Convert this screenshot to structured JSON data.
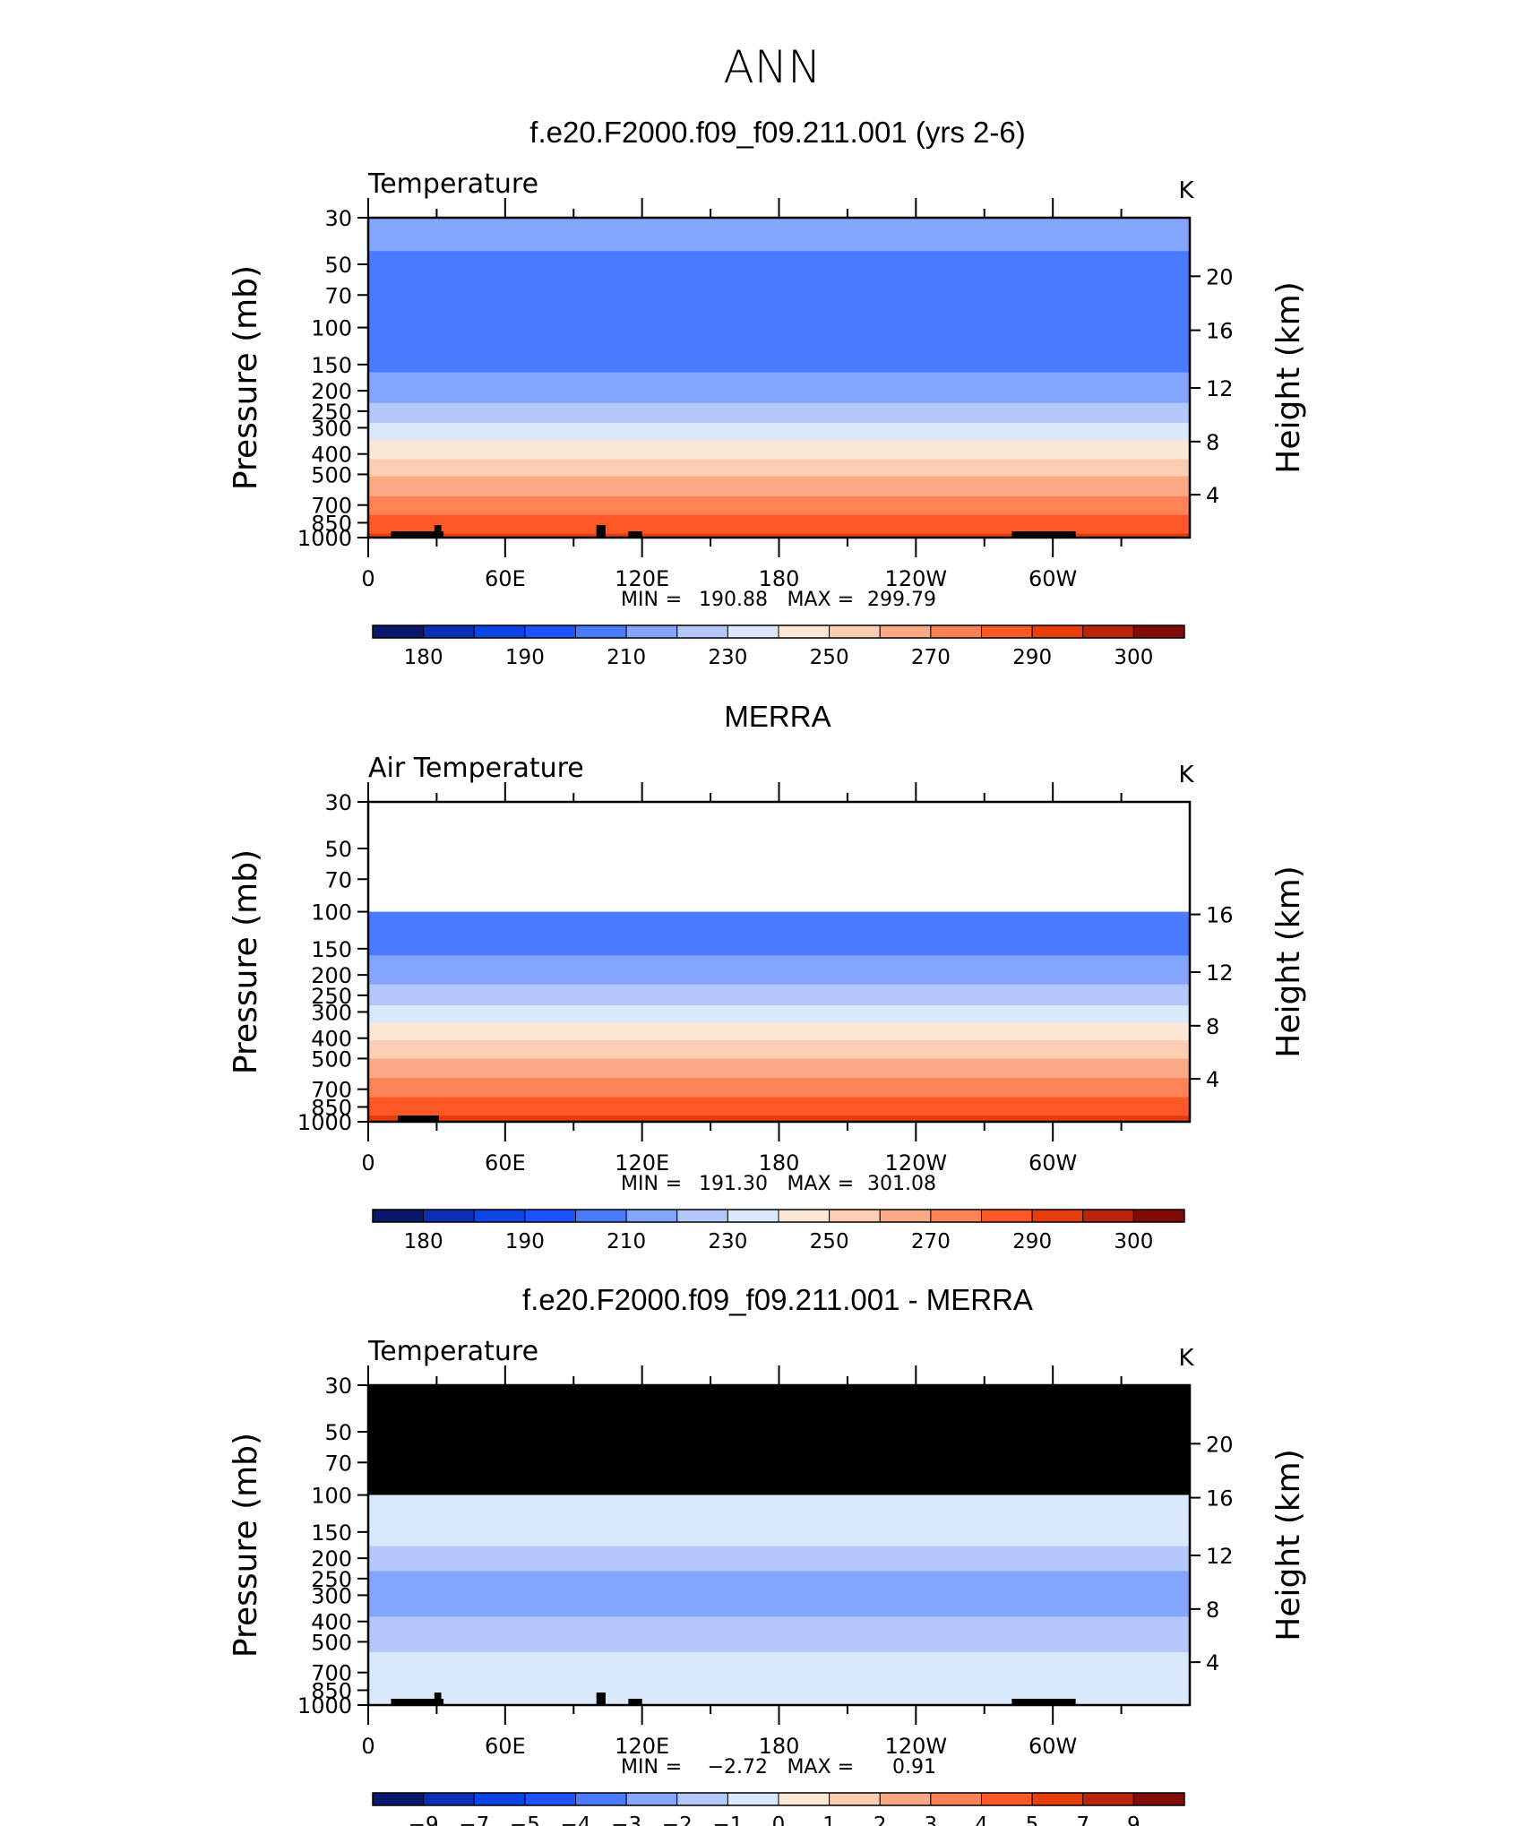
{
  "figure": {
    "main_title": "ANN"
  },
  "chart_data": [
    {
      "type": "heatmap",
      "title": "f.e20.F2000.f09_f09.211.001 (yrs 2-6)",
      "variable": "Temperature",
      "units": "K",
      "xlabel": "",
      "ylabel": "Pressure (mb)",
      "ylabel_right": "Height (km)",
      "x_ticks": [
        "0",
        "60E",
        "120E",
        "180",
        "120W",
        "60W"
      ],
      "y_ticks": [
        "30",
        "50",
        "70",
        "100",
        "150",
        "200",
        "250",
        "300",
        "400",
        "500",
        "700",
        "850",
        "1000"
      ],
      "y_ticks_right": [
        "20",
        "16",
        "12",
        "8",
        "4"
      ],
      "xlim": [
        0,
        360
      ],
      "ylim": [
        1000,
        30
      ],
      "stats": {
        "min_label": "MIN",
        "min": "190.88",
        "max_label": "MAX",
        "max": "299.79"
      },
      "colorbar": {
        "labels": [
          "180",
          "190",
          "210",
          "230",
          "250",
          "270",
          "290",
          "300"
        ],
        "colors": [
          "#08196b",
          "#0a2fb4",
          "#0d44e6",
          "#1c52ff",
          "#4a7aff",
          "#83a5fb",
          "#b3c8f9",
          "#d9e8fb",
          "#fbe7d6",
          "#fbcdb3",
          "#fba885",
          "#fd8256",
          "#fd5825",
          "#e73c0b",
          "#b8250a",
          "#7f0c08"
        ]
      },
      "missing_above_mb": null,
      "data_top_mb": 30,
      "profile": [
        {
          "p": 30,
          "t": 215
        },
        {
          "p": 40,
          "t": 211
        },
        {
          "p": 50,
          "t": 208
        },
        {
          "p": 70,
          "t": 203
        },
        {
          "p": 100,
          "t": 201
        },
        {
          "p": 125,
          "t": 203
        },
        {
          "p": 150,
          "t": 208
        },
        {
          "p": 200,
          "t": 215
        },
        {
          "p": 250,
          "t": 224
        },
        {
          "p": 300,
          "t": 233
        },
        {
          "p": 400,
          "t": 248
        },
        {
          "p": 500,
          "t": 259
        },
        {
          "p": 700,
          "t": 275
        },
        {
          "p": 850,
          "t": 284
        },
        {
          "p": 1000,
          "t": 293
        }
      ],
      "topography_blocks": [
        [
          10,
          33
        ],
        [
          29,
          32
        ],
        [
          100,
          104
        ],
        [
          114,
          120
        ],
        [
          282,
          310
        ]
      ]
    },
    {
      "type": "heatmap",
      "title": "MERRA",
      "variable": "Air Temperature",
      "units": "K",
      "xlabel": "",
      "ylabel": "Pressure (mb)",
      "ylabel_right": "Height (km)",
      "x_ticks": [
        "0",
        "60E",
        "120E",
        "180",
        "120W",
        "60W"
      ],
      "y_ticks": [
        "30",
        "50",
        "70",
        "100",
        "150",
        "200",
        "250",
        "300",
        "400",
        "500",
        "700",
        "850",
        "1000"
      ],
      "y_ticks_right": [
        "16",
        "12",
        "8",
        "4"
      ],
      "xlim": [
        0,
        360
      ],
      "ylim": [
        1000,
        30
      ],
      "stats": {
        "min_label": "MIN",
        "min": "191.30",
        "max_label": "MAX",
        "max": "301.08"
      },
      "colorbar": {
        "labels": [
          "180",
          "190",
          "210",
          "230",
          "250",
          "270",
          "290",
          "300"
        ],
        "colors": [
          "#08196b",
          "#0a2fb4",
          "#0d44e6",
          "#1c52ff",
          "#4a7aff",
          "#83a5fb",
          "#b3c8f9",
          "#d9e8fb",
          "#fbe7d6",
          "#fbcdb3",
          "#fba885",
          "#fd8256",
          "#fd5825",
          "#e73c0b",
          "#b8250a",
          "#7f0c08"
        ]
      },
      "missing_above_mb": 100,
      "data_top_mb": 100,
      "profile": [
        {
          "p": 100,
          "t": 202
        },
        {
          "p": 125,
          "t": 204
        },
        {
          "p": 150,
          "t": 208
        },
        {
          "p": 200,
          "t": 216
        },
        {
          "p": 250,
          "t": 225
        },
        {
          "p": 300,
          "t": 234
        },
        {
          "p": 400,
          "t": 249
        },
        {
          "p": 500,
          "t": 260
        },
        {
          "p": 700,
          "t": 276
        },
        {
          "p": 850,
          "t": 285
        },
        {
          "p": 1000,
          "t": 294
        }
      ],
      "topography_blocks": [
        [
          13,
          31
        ]
      ]
    },
    {
      "type": "heatmap",
      "title": "f.e20.F2000.f09_f09.211.001 - MERRA",
      "variable": "Temperature",
      "units": "K",
      "xlabel": "",
      "ylabel": "Pressure (mb)",
      "ylabel_right": "Height (km)",
      "x_ticks": [
        "0",
        "60E",
        "120E",
        "180",
        "120W",
        "60W"
      ],
      "y_ticks": [
        "30",
        "50",
        "70",
        "100",
        "150",
        "200",
        "250",
        "300",
        "400",
        "500",
        "700",
        "850",
        "1000"
      ],
      "y_ticks_right": [
        "20",
        "16",
        "12",
        "8",
        "4"
      ],
      "xlim": [
        0,
        360
      ],
      "ylim": [
        1000,
        30
      ],
      "stats": {
        "min_label": "MIN",
        "min": "−2.72",
        "max_label": "MAX",
        "max": "0.91"
      },
      "colorbar": {
        "labels": [
          "−9",
          "−7",
          "−5",
          "−4",
          "−3",
          "−2",
          "−1",
          "0",
          "1",
          "2",
          "3",
          "4",
          "5",
          "7",
          "9"
        ],
        "colors": [
          "#08196b",
          "#0a2fb4",
          "#0d44e6",
          "#1c52ff",
          "#4a7aff",
          "#83a5fb",
          "#b3c8f9",
          "#d9e8fb",
          "#fbe7d6",
          "#fbcdb3",
          "#fba885",
          "#fd8256",
          "#fd5825",
          "#e73c0b",
          "#b8250a",
          "#7f0c08"
        ]
      },
      "missing_above_mb": 100,
      "data_top_mb": 100,
      "bands": [
        {
          "p_top": 100,
          "p_bot": 175,
          "color": "#d9e8fb"
        },
        {
          "p_top": 175,
          "p_bot": 230,
          "color": "#b3c8f9"
        },
        {
          "p_top": 230,
          "p_bot": 380,
          "color": "#83a5fb"
        },
        {
          "p_top": 380,
          "p_bot": 560,
          "color": "#b3c8f9"
        },
        {
          "p_top": 560,
          "p_bot": 1000,
          "color": "#d9e8fb"
        }
      ],
      "topography_blocks": [
        [
          10,
          33
        ],
        [
          29,
          32
        ],
        [
          100,
          104
        ],
        [
          114,
          120
        ],
        [
          282,
          310
        ]
      ]
    }
  ]
}
